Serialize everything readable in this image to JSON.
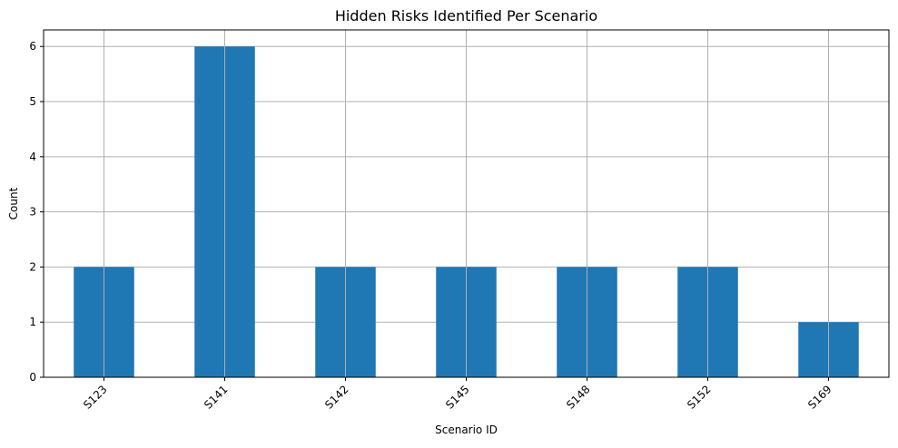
{
  "chart_data": {
    "type": "bar",
    "title": "Hidden Risks Identified Per Scenario",
    "xlabel": "Scenario ID",
    "ylabel": "Count",
    "categories": [
      "S123",
      "S141",
      "S142",
      "S145",
      "S148",
      "S152",
      "S169"
    ],
    "values": [
      2,
      6,
      2,
      2,
      2,
      2,
      1
    ],
    "ylim": [
      0,
      6.3
    ],
    "yticks": [
      "0",
      "1",
      "2",
      "3",
      "4",
      "5",
      "6"
    ],
    "grid": true,
    "legend": "none",
    "bar_color": "#1f77b4",
    "grid_color": "#b0b0b0"
  }
}
